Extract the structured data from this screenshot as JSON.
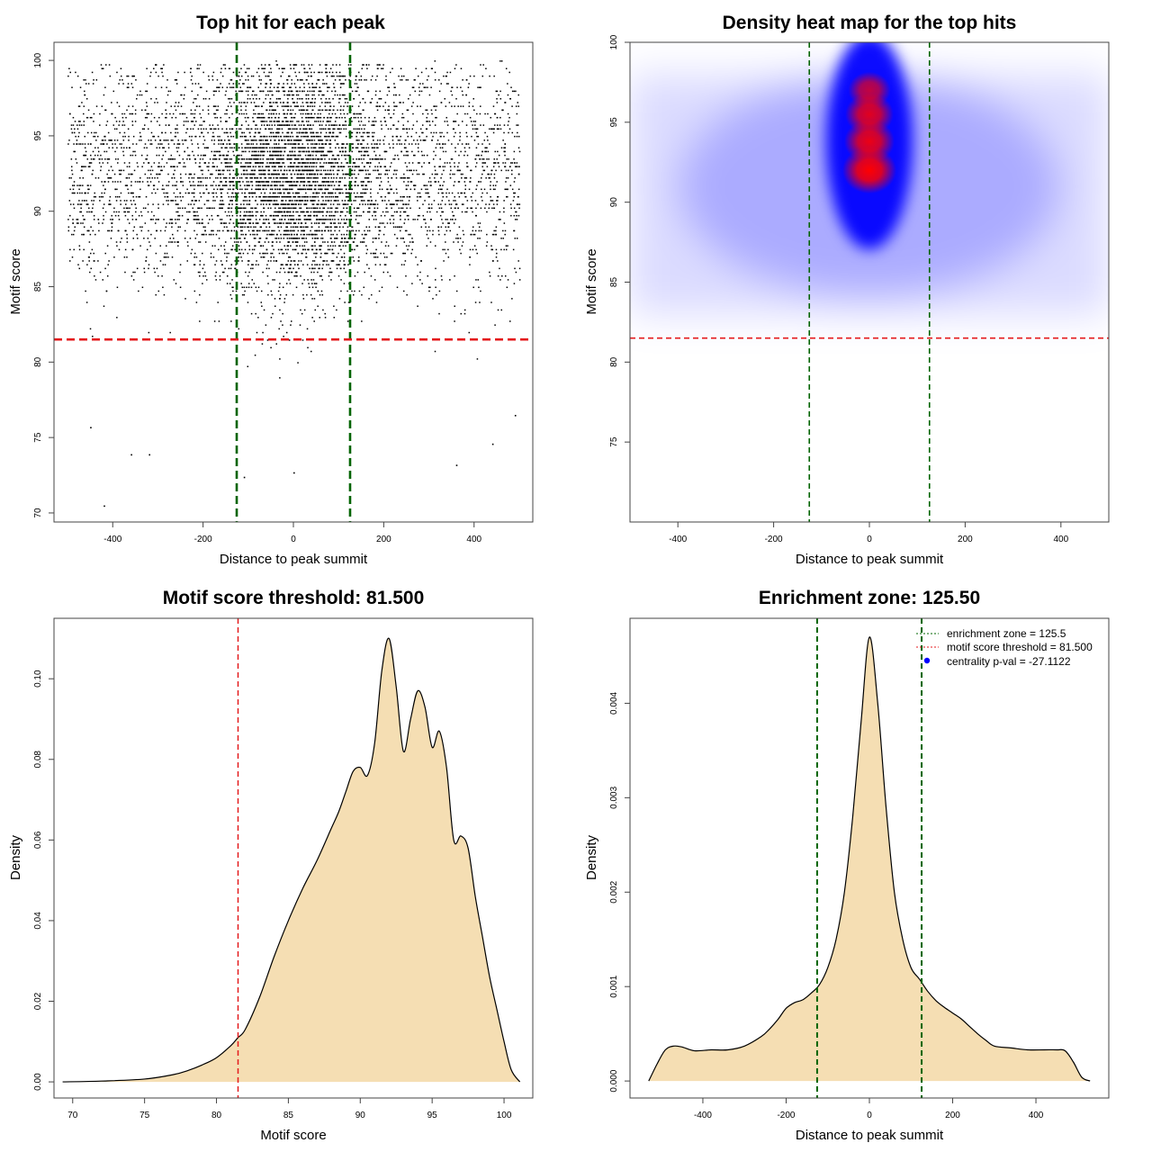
{
  "chart_data": [
    {
      "panel": "scatter",
      "type": "scatter",
      "title": "Top hit for each peak",
      "xlabel": "Distance to peak summit",
      "ylabel": "Motif score",
      "xlim": [
        -530,
        530
      ],
      "ylim": [
        69.4,
        101.2
      ],
      "xticks": [
        -400,
        -200,
        0,
        200,
        400
      ],
      "yticks": [
        70,
        75,
        80,
        85,
        90,
        95,
        100
      ],
      "x_range": [
        -500,
        500
      ],
      "score_center": 92.5,
      "score_spread": 3.8,
      "central_fraction": 0.45,
      "central_sd": 95,
      "sample_points": [
        {
          "x": -420,
          "y": 70.5
        },
        {
          "x": -110,
          "y": 72.4
        },
        {
          "x": 0,
          "y": 72.7
        },
        {
          "x": -360,
          "y": 73.9
        },
        {
          "x": -320,
          "y": 73.9
        },
        {
          "x": 360,
          "y": 73.2
        },
        {
          "x": -450,
          "y": 75.7
        },
        {
          "x": 440,
          "y": 74.6
        },
        {
          "x": 490,
          "y": 76.5
        }
      ],
      "vlines": [
        {
          "x": -125.5,
          "color": "#006400",
          "style": "dashed"
        },
        {
          "x": 125.5,
          "color": "#006400",
          "style": "dashed"
        }
      ],
      "hlines": [
        {
          "y": 81.5,
          "color": "#e41a1c",
          "style": "dashed"
        }
      ]
    },
    {
      "panel": "heatmap",
      "type": "heatmap",
      "title": "Density heat map for the top hits",
      "xlabel": "Distance to peak summit",
      "ylabel": "Motif score",
      "xlim": [
        -500,
        500
      ],
      "ylim": [
        70,
        100
      ],
      "xticks": [
        -400,
        -200,
        0,
        200,
        400
      ],
      "yticks": [
        75,
        80,
        85,
        90,
        95,
        100
      ],
      "colors": [
        "#ffffff",
        "#0000ff",
        "#ff0000"
      ],
      "hotspots": [
        {
          "x": 0,
          "y": 92.0,
          "intensity": 1.0
        },
        {
          "x": 0,
          "y": 93.8,
          "intensity": 0.92
        },
        {
          "x": 0,
          "y": 95.5,
          "intensity": 0.88
        },
        {
          "x": 0,
          "y": 97.0,
          "intensity": 0.75
        }
      ],
      "vlines": [
        {
          "x": -125.5,
          "color": "#006400",
          "style": "dashed"
        },
        {
          "x": 125.5,
          "color": "#006400",
          "style": "dashed"
        }
      ],
      "hlines": [
        {
          "y": 81.5,
          "color": "#e41a1c",
          "style": "dashed"
        }
      ]
    },
    {
      "panel": "score_density",
      "type": "area",
      "title": "Motif score threshold: 81.500",
      "xlabel": "Motif score",
      "ylabel": "Density",
      "xlim": [
        68.7,
        102.0
      ],
      "ylim": [
        -0.004,
        0.115
      ],
      "xticks": [
        70,
        75,
        80,
        85,
        90,
        95,
        100
      ],
      "yticks": [
        0.0,
        0.02,
        0.04,
        0.06,
        0.08,
        0.1
      ],
      "ytick_labels": [
        "0.00",
        "0.02",
        "0.04",
        "0.06",
        "0.08",
        "0.10"
      ],
      "fill": "#f5deb3",
      "x": [
        69.3,
        72,
        75,
        77,
        78,
        79,
        80,
        81,
        81.5,
        82,
        83,
        84,
        85,
        86,
        87,
        88,
        88.5,
        89,
        89.5,
        90,
        90.5,
        91,
        91.5,
        92,
        92.5,
        93,
        93.5,
        94,
        94.5,
        95,
        95.5,
        96,
        96.5,
        97,
        97.5,
        98,
        98.5,
        99,
        99.5,
        100,
        100.5,
        101.1
      ],
      "y": [
        0.0,
        0.0002,
        0.0007,
        0.0018,
        0.0028,
        0.0042,
        0.006,
        0.009,
        0.011,
        0.013,
        0.021,
        0.031,
        0.04,
        0.048,
        0.055,
        0.063,
        0.067,
        0.072,
        0.077,
        0.078,
        0.076,
        0.084,
        0.102,
        0.11,
        0.098,
        0.082,
        0.09,
        0.097,
        0.093,
        0.083,
        0.087,
        0.078,
        0.06,
        0.061,
        0.058,
        0.046,
        0.036,
        0.026,
        0.018,
        0.01,
        0.003,
        0.0
      ],
      "vlines": [
        {
          "x": 81.5,
          "color": "#e41a1c",
          "style": "dashed"
        }
      ]
    },
    {
      "panel": "distance_density",
      "type": "area",
      "title": "Enrichment zone: 125.50",
      "xlabel": "Distance to peak summit",
      "ylabel": "Density",
      "xlim": [
        -575,
        575
      ],
      "ylim": [
        -0.00018,
        0.0049
      ],
      "xticks": [
        -400,
        -200,
        0,
        200,
        400
      ],
      "yticks": [
        0.0,
        0.001,
        0.002,
        0.003,
        0.004
      ],
      "ytick_labels": [
        "0.000",
        "0.001",
        "0.002",
        "0.003",
        "0.004"
      ],
      "fill": "#f5deb3",
      "x": [
        -530,
        -510,
        -490,
        -470,
        -450,
        -420,
        -380,
        -340,
        -300,
        -260,
        -240,
        -220,
        -200,
        -180,
        -160,
        -140,
        -120,
        -100,
        -80,
        -60,
        -40,
        -20,
        0,
        20,
        40,
        60,
        80,
        100,
        120,
        140,
        160,
        180,
        200,
        220,
        240,
        260,
        280,
        300,
        340,
        380,
        420,
        450,
        470,
        490,
        510,
        530
      ],
      "y": [
        0.0,
        0.00018,
        0.00033,
        0.00037,
        0.00036,
        0.00032,
        0.00033,
        0.00033,
        0.00037,
        0.00047,
        0.00055,
        0.00065,
        0.00077,
        0.00083,
        0.00086,
        0.00093,
        0.00102,
        0.0012,
        0.0015,
        0.002,
        0.0028,
        0.0038,
        0.0047,
        0.004,
        0.0029,
        0.002,
        0.0015,
        0.0012,
        0.00108,
        0.00095,
        0.00085,
        0.00078,
        0.00072,
        0.00066,
        0.00058,
        0.0005,
        0.00043,
        0.00037,
        0.00035,
        0.00033,
        0.00033,
        0.00033,
        0.00032,
        0.0002,
        4e-05,
        0.0
      ],
      "vlines": [
        {
          "x": -125.5,
          "color": "#006400",
          "style": "dashed"
        },
        {
          "x": 125.5,
          "color": "#006400",
          "style": "dashed"
        }
      ],
      "legend": {
        "position": "top-right",
        "entries": [
          {
            "label": "enrichment zone = 125.5",
            "color": "#006400",
            "symbol": "dotted-line"
          },
          {
            "label": "motif score threshold = 81.500",
            "color": "#e41a1c",
            "symbol": "dotted-line"
          },
          {
            "label": "centrality p-val = -27.1122",
            "color": "#0000ff",
            "symbol": "dot"
          }
        ]
      }
    }
  ]
}
